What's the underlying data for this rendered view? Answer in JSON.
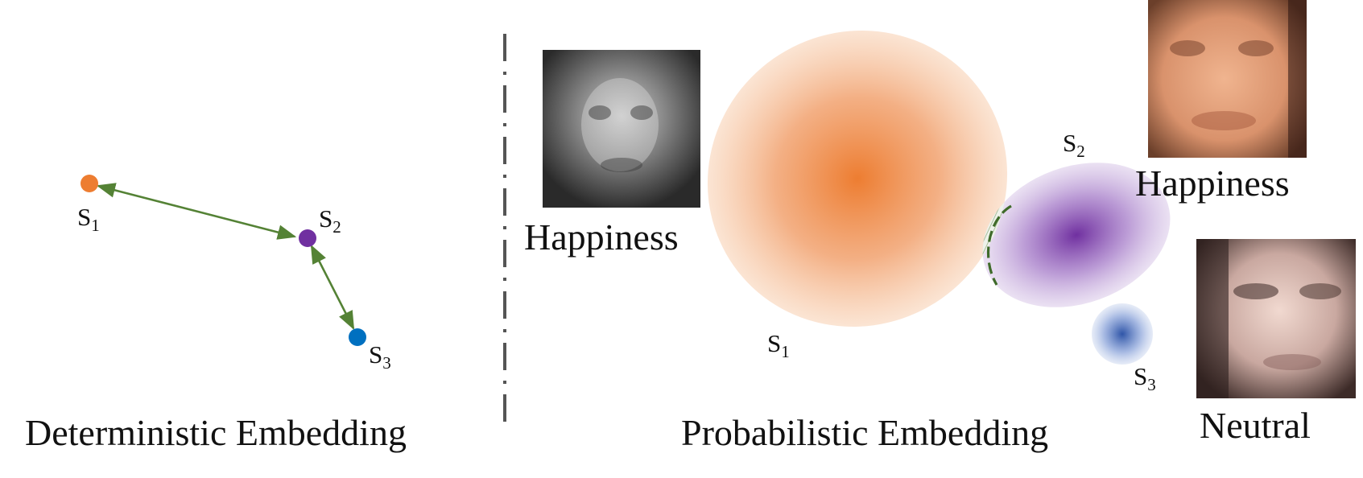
{
  "left_panel": {
    "caption": "Deterministic Embedding",
    "points": [
      {
        "id": "s1",
        "label": "S",
        "sub": "1",
        "color": "#ed7d31"
      },
      {
        "id": "s2",
        "label": "S",
        "sub": "2",
        "color": "#7030a0"
      },
      {
        "id": "s3",
        "label": "S",
        "sub": "3",
        "color": "#0070c0"
      }
    ],
    "arrow_color": "#548235"
  },
  "right_panel": {
    "caption": "Probabilistic Embedding",
    "distributions": [
      {
        "id": "s1",
        "label": "S",
        "sub": "1",
        "color": "#ed7d31"
      },
      {
        "id": "s2",
        "label": "S",
        "sub": "2",
        "color": "#7030a0"
      },
      {
        "id": "s3",
        "label": "S",
        "sub": "3",
        "color": "#4472c4"
      }
    ],
    "overlap_color": "#548235",
    "face_images": [
      {
        "id": "face-s1",
        "label": "Happiness",
        "style": "grayscale"
      },
      {
        "id": "face-s2",
        "label": "Happiness",
        "style": "color"
      },
      {
        "id": "face-s3",
        "label": "Neutral",
        "style": "color"
      }
    ]
  },
  "divider": {
    "style": "dash-dot",
    "color": "#555555"
  }
}
